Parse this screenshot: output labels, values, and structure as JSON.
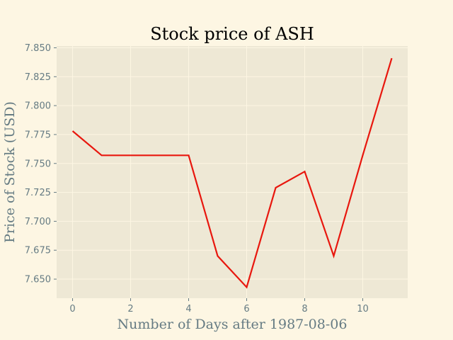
{
  "chart_data": {
    "type": "line",
    "title": "Stock price of ASH",
    "xlabel": "Number of Days after 1987-08-06",
    "ylabel": "Price of Stock (USD)",
    "xlim": [
      -0.55,
      11.55
    ],
    "ylim": [
      7.6335,
      7.8515
    ],
    "xticks": [
      0,
      2,
      4,
      6,
      8,
      10
    ],
    "xtick_labels": [
      "0",
      "2",
      "4",
      "6",
      "8",
      "10"
    ],
    "yticks": [
      7.65,
      7.675,
      7.7,
      7.725,
      7.75,
      7.775,
      7.8,
      7.825,
      7.85
    ],
    "ytick_labels": [
      "7.650",
      "7.675",
      "7.700",
      "7.725",
      "7.750",
      "7.775",
      "7.800",
      "7.825",
      "7.850"
    ],
    "grid": true,
    "series": [
      {
        "color": "#e8170e",
        "x": [
          0,
          1,
          2,
          3,
          4,
          5,
          6,
          7,
          8,
          9,
          10,
          11
        ],
        "y": [
          7.778,
          7.757,
          7.757,
          7.757,
          7.757,
          7.67,
          7.643,
          7.729,
          7.743,
          7.67,
          7.757,
          7.841
        ]
      }
    ],
    "colors": {
      "figure_bg": "#fdf6e3",
      "plot_bg": "#eee8d5",
      "grid": "#fdf6e3",
      "tick": "#657b83"
    }
  }
}
